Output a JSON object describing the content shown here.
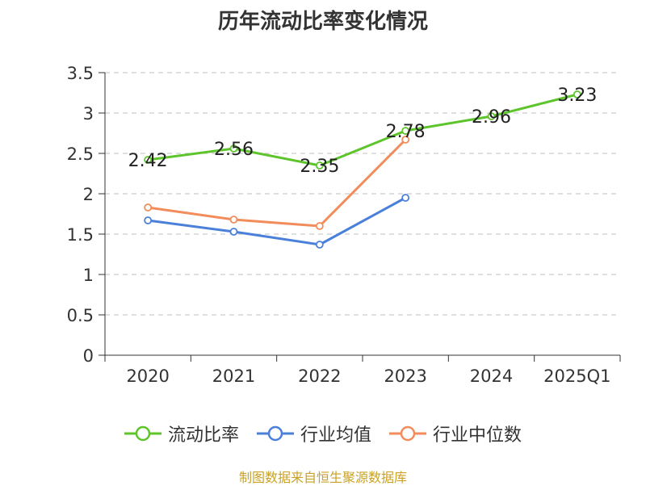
{
  "chart_data": {
    "type": "line",
    "title": "历年流动比率变化情况",
    "categories": [
      "2020",
      "2021",
      "2022",
      "2023",
      "2024",
      "2025Q1"
    ],
    "ylim": [
      0,
      3.5
    ],
    "yticks": [
      0,
      0.5,
      1,
      1.5,
      2,
      2.5,
      3,
      3.5
    ],
    "ytick_labels": [
      "0",
      "0.5",
      "1",
      "1.5",
      "2",
      "2.5",
      "3",
      "3.5"
    ],
    "grid": true,
    "legend_position": "bottom",
    "series": [
      {
        "name": "流动比率",
        "color": "#5ec42b",
        "values": [
          2.42,
          2.56,
          2.35,
          2.78,
          2.96,
          3.23
        ],
        "labels": [
          "2.42",
          "2.56",
          "2.35",
          "2.78",
          "2.96",
          "3.23"
        ],
        "show_labels": true
      },
      {
        "name": "行业均值",
        "color": "#4a80d9",
        "values": [
          1.67,
          1.53,
          1.37,
          1.95,
          null,
          null
        ],
        "show_labels": false
      },
      {
        "name": "行业中位数",
        "color": "#f28c5a",
        "values": [
          1.83,
          1.68,
          1.6,
          2.67,
          null,
          null
        ],
        "show_labels": false
      }
    ]
  },
  "source_note": "制图数据来自恒生聚源数据库"
}
